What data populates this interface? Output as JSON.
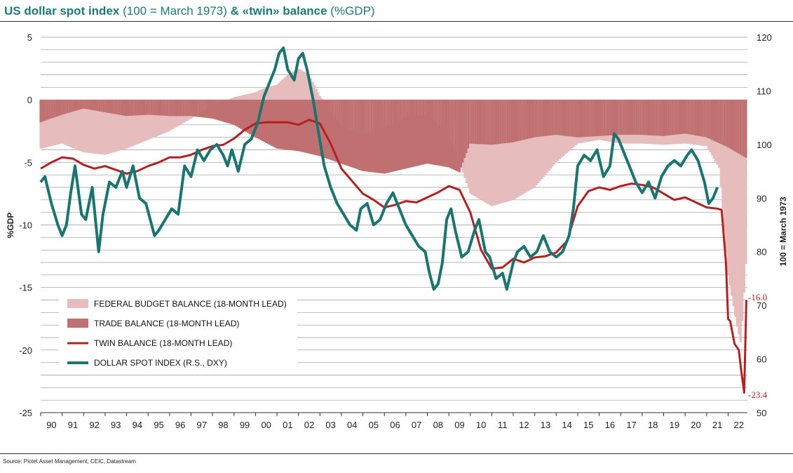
{
  "header": {
    "title_bold_1": "US dollar spot index",
    "title_normal_1": " (100 = March 1973) ",
    "title_bold_2": "& «twin» balance",
    "title_normal_2": " (%GDP)"
  },
  "footer": {
    "source": "Source: Pictet Asset Management, CEIC, Datastream"
  },
  "colors": {
    "budget": "#e7bcbc",
    "trade": "#c07070",
    "twin": "#b22222",
    "dxy": "#1a7470",
    "title": "#1e7a78",
    "annotation": "#b22222"
  },
  "chart_data": {
    "type": "area+line",
    "title": "US dollar spot index (100 = March 1973) & «twin» balance (%GDP)",
    "ylabel_left": "%GDP",
    "ylabel_right": "100 = March 1973",
    "xlim": [
      1990,
      2022.9
    ],
    "ylim_left": [
      -25,
      5
    ],
    "ylim_right": [
      50,
      120
    ],
    "x_ticks": [
      "90",
      "91",
      "92",
      "93",
      "94",
      "95",
      "96",
      "97",
      "98",
      "99",
      "00",
      "01",
      "02",
      "03",
      "04",
      "05",
      "06",
      "07",
      "08",
      "09",
      "10",
      "11",
      "12",
      "13",
      "14",
      "15",
      "16",
      "17",
      "18",
      "19",
      "20",
      "21",
      "22"
    ],
    "y_ticks_left": [
      "5",
      "0",
      "-5",
      "-10",
      "-15",
      "-20",
      "-25"
    ],
    "y_ticks_left_values": [
      5,
      0,
      -5,
      -10,
      -15,
      -20,
      -25
    ],
    "y_ticks_right": [
      "120",
      "110",
      "100",
      "90",
      "80",
      "70",
      "60",
      "50"
    ],
    "y_ticks_right_values": [
      120,
      110,
      100,
      90,
      80,
      70,
      60,
      50
    ],
    "legend": [
      {
        "label": "FEDERAL BUDGET BALANCE (18-MONTH LEAD)",
        "kind": "area",
        "color": "#e7bcbc"
      },
      {
        "label": "TRADE BALANCE (18-MONTH LEAD)",
        "kind": "area",
        "color": "#c07070"
      },
      {
        "label": "TWIN BALANCE (18-MONTH LEAD)",
        "kind": "line",
        "color": "#b22222"
      },
      {
        "label": "DOLLAR SPOT INDEX (R.S., DXY)",
        "kind": "line",
        "color": "#1a7470"
      }
    ],
    "annotations": [
      {
        "text": "-16.0",
        "x": 2022.7,
        "y": -16.0
      },
      {
        "text": "-23.4",
        "x": 2022.5,
        "y": -23.4
      }
    ],
    "series": [
      {
        "name": "TRADE BALANCE (18-MONTH LEAD)",
        "axis": "left",
        "x": [
          1990,
          1991,
          1992,
          1993,
          1994,
          1995,
          1996,
          1997,
          1998,
          1999,
          2000,
          2001,
          2002,
          2003,
          2004,
          2005,
          2006,
          2007,
          2008,
          2009,
          2009.5,
          2010,
          2011,
          2012,
          2013,
          2014,
          2015,
          2016,
          2017,
          2018,
          2019,
          2020,
          2021,
          2022,
          2022.9
        ],
        "values": [
          -1.8,
          -1.2,
          -0.7,
          -1.0,
          -1.3,
          -1.2,
          -1.3,
          -1.3,
          -1.5,
          -2.0,
          -3.0,
          -3.9,
          -4.1,
          -4.5,
          -5.1,
          -5.7,
          -5.9,
          -5.5,
          -5.1,
          -5.4,
          -5.8,
          -3.5,
          -3.6,
          -3.4,
          -3.0,
          -2.8,
          -3.0,
          -2.9,
          -2.8,
          -2.8,
          -2.9,
          -2.7,
          -3.0,
          -3.8,
          -4.7
        ]
      },
      {
        "name": "FEDERAL BUDGET BALANCE (18-MONTH LEAD)",
        "axis": "left",
        "x": [
          1990,
          1991,
          1992,
          1993,
          1994,
          1995,
          1996,
          1997,
          1998,
          1999,
          2000,
          2000.5,
          2001,
          2001.5,
          2002,
          2002.5,
          2003,
          2004,
          2005,
          2006,
          2007,
          2008,
          2009,
          2010,
          2011,
          2012,
          2013,
          2014,
          2015,
          2016,
          2017,
          2018,
          2019,
          2020,
          2021,
          2021.6,
          2022,
          2022.4,
          2022.6,
          2022.9
        ],
        "values": [
          -3.9,
          -3.5,
          -4.2,
          -4.4,
          -3.9,
          -3.2,
          -2.5,
          -1.5,
          -0.5,
          0.2,
          0.6,
          1.0,
          1.2,
          2.0,
          2.5,
          2.0,
          0.3,
          -2.0,
          -2.8,
          -2.3,
          -1.4,
          -1.2,
          -2.5,
          -7.5,
          -8.5,
          -8.0,
          -7.0,
          -5.0,
          -3.5,
          -3.2,
          -3.5,
          -3.5,
          -3.6,
          -3.5,
          -3.7,
          -5.5,
          -14.0,
          -18.0,
          -19.5,
          -11.3
        ]
      },
      {
        "name": "TWIN BALANCE (18-MONTH LEAD)",
        "axis": "left",
        "x": [
          1990,
          1990.5,
          1991,
          1991.5,
          1992,
          1992.5,
          1993,
          1993.5,
          1994,
          1994.5,
          1995,
          1995.5,
          1996,
          1996.5,
          1997,
          1997.5,
          1998,
          1998.5,
          1999,
          1999.5,
          2000,
          2000.5,
          2001,
          2001.5,
          2002,
          2002.5,
          2003,
          2003.5,
          2004,
          2004.5,
          2005,
          2005.5,
          2006,
          2006.5,
          2007,
          2007.5,
          2008,
          2008.5,
          2009,
          2009.5,
          2010,
          2010.5,
          2011,
          2011.5,
          2012,
          2012.5,
          2013,
          2013.5,
          2014,
          2014.5,
          2015,
          2015.5,
          2016,
          2016.5,
          2017,
          2017.5,
          2018,
          2018.5,
          2019,
          2019.5,
          2020,
          2020.5,
          2021,
          2021.5,
          2021.7,
          2021.9,
          2022.0,
          2022.1,
          2022.3,
          2022.5,
          2022.6,
          2022.75,
          2022.85
        ],
        "values": [
          -5.5,
          -5.0,
          -4.6,
          -4.7,
          -5.2,
          -5.5,
          -5.3,
          -5.6,
          -5.9,
          -5.7,
          -5.3,
          -5.0,
          -4.6,
          -4.6,
          -4.4,
          -4.0,
          -3.7,
          -3.6,
          -3.1,
          -2.4,
          -1.9,
          -1.8,
          -1.8,
          -1.8,
          -2.0,
          -1.6,
          -1.9,
          -3.5,
          -5.5,
          -6.5,
          -7.5,
          -8.0,
          -8.6,
          -8.4,
          -8.1,
          -8.2,
          -7.8,
          -7.4,
          -6.9,
          -7.2,
          -9.0,
          -12.0,
          -13.5,
          -13.4,
          -12.7,
          -13.0,
          -12.6,
          -12.5,
          -12.2,
          -11.3,
          -8.5,
          -7.3,
          -7.0,
          -7.2,
          -6.9,
          -6.7,
          -6.8,
          -7.0,
          -7.5,
          -8.0,
          -7.8,
          -8.2,
          -8.6,
          -8.7,
          -8.8,
          -13.0,
          -17.5,
          -17.7,
          -19.5,
          -20.0,
          -21.5,
          -23.4,
          -16.0
        ]
      },
      {
        "name": "DOLLAR SPOT INDEX (R.S., DXY)",
        "axis": "right",
        "x": [
          1990,
          1990.2,
          1990.5,
          1990.8,
          1991,
          1991.2,
          1991.4,
          1991.6,
          1991.9,
          1992.1,
          1992.4,
          1992.7,
          1992.9,
          1993.2,
          1993.5,
          1993.8,
          1994,
          1994.3,
          1994.6,
          1994.9,
          1995.1,
          1995.3,
          1995.5,
          1995.8,
          1996.1,
          1996.4,
          1996.7,
          1997.0,
          1997.3,
          1997.6,
          1997.9,
          1998.2,
          1998.5,
          1998.7,
          1998.9,
          1999.2,
          1999.5,
          1999.8,
          2000.1,
          2000.4,
          2000.7,
          2000.9,
          2001.1,
          2001.3,
          2001.5,
          2001.8,
          2002.0,
          2002.2,
          2002.4,
          2002.7,
          2002.9,
          2003.2,
          2003.5,
          2003.8,
          2004.1,
          2004.4,
          2004.7,
          2004.9,
          2005.2,
          2005.5,
          2005.8,
          2006.1,
          2006.4,
          2006.7,
          2007.0,
          2007.3,
          2007.6,
          2007.9,
          2008.1,
          2008.3,
          2008.5,
          2008.7,
          2008.9,
          2009.1,
          2009.3,
          2009.6,
          2009.9,
          2010.2,
          2010.4,
          2010.7,
          2010.9,
          2011.2,
          2011.5,
          2011.7,
          2012.0,
          2012.2,
          2012.5,
          2012.8,
          2013.1,
          2013.4,
          2013.7,
          2014.0,
          2014.3,
          2014.6,
          2014.8,
          2015.0,
          2015.3,
          2015.6,
          2015.9,
          2016.2,
          2016.5,
          2016.7,
          2016.9,
          2017.1,
          2017.4,
          2017.7,
          2018.0,
          2018.3,
          2018.6,
          2018.9,
          2019.2,
          2019.5,
          2019.8,
          2020.1,
          2020.3,
          2020.6,
          2020.9,
          2021.1,
          2021.3,
          2021.5
        ],
        "values": [
          93,
          94,
          89,
          85,
          83,
          85,
          91,
          96,
          87,
          86,
          92,
          80,
          87,
          93,
          92,
          95,
          92,
          96,
          90,
          89,
          86,
          83,
          84,
          86,
          88,
          87,
          96,
          94,
          99,
          97,
          99,
          100,
          98,
          96,
          99,
          95,
          100,
          101,
          104,
          109,
          112,
          114,
          117,
          118,
          114,
          112,
          116,
          117,
          114,
          108,
          103,
          96,
          92,
          89,
          87,
          85,
          84,
          88,
          89,
          85,
          86,
          89,
          91,
          88,
          85,
          83,
          81,
          80,
          76,
          73,
          74,
          78,
          86,
          88,
          84,
          79,
          80,
          84,
          86,
          80,
          79,
          75,
          76,
          73,
          78,
          80,
          81,
          79,
          80,
          83,
          80,
          79,
          80,
          83,
          88,
          96,
          98,
          97,
          99,
          94,
          96,
          102,
          101,
          99,
          96,
          93,
          91,
          93,
          90,
          94,
          96,
          97,
          96,
          98,
          99,
          97,
          93,
          89,
          90,
          92
        ]
      }
    ]
  }
}
